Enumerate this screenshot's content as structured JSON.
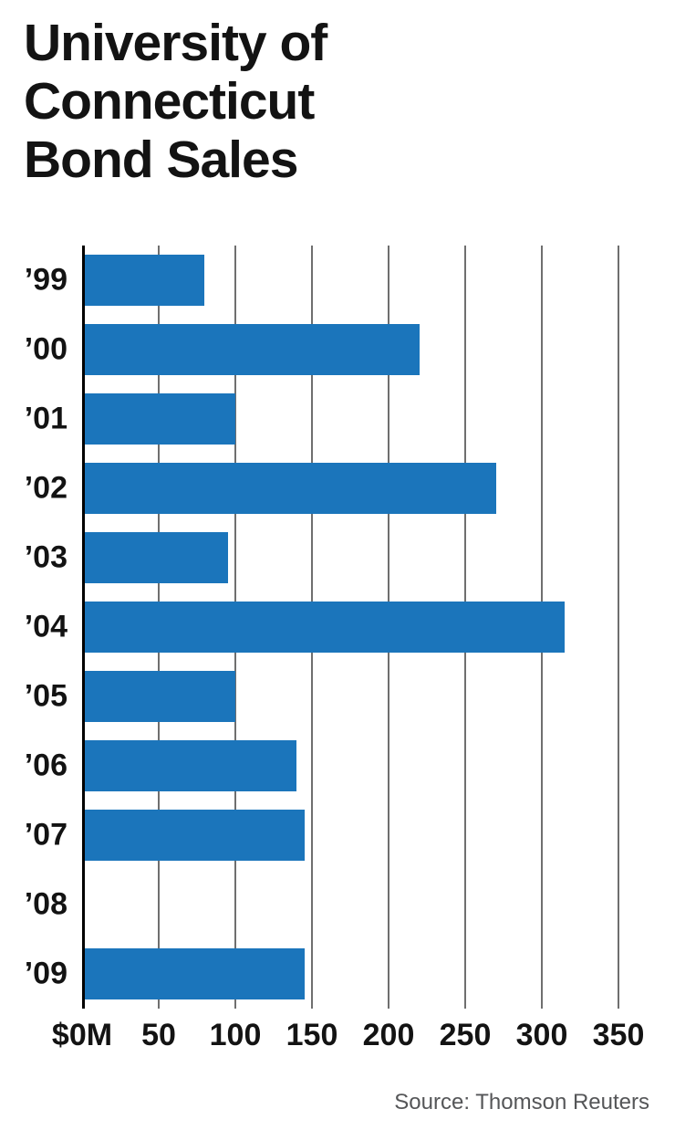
{
  "title": "University of\nConnecticut\nBond Sales",
  "source": "Source: Thomson Reuters",
  "chart_data": {
    "type": "bar",
    "orientation": "horizontal",
    "title": "University of Connecticut Bond Sales",
    "unit": "$M",
    "categories": [
      "’99",
      "’00",
      "’01",
      "’02",
      "’03",
      "’04",
      "’05",
      "’06",
      "’07",
      "’08",
      "’09"
    ],
    "values": [
      80,
      220,
      100,
      270,
      95,
      315,
      100,
      140,
      145,
      0,
      145
    ],
    "x_tick_labels": [
      "$0M",
      "50",
      "100",
      "150",
      "200",
      "250",
      "300",
      "350"
    ],
    "xlim": [
      0,
      350
    ],
    "tick_step": 50,
    "grid": "vertical",
    "legend": "none",
    "bar_color": "#1b75bb",
    "gridline_color": "#6f6f6f",
    "axis_color": "#000000",
    "source": "Source: Thomson Reuters"
  }
}
